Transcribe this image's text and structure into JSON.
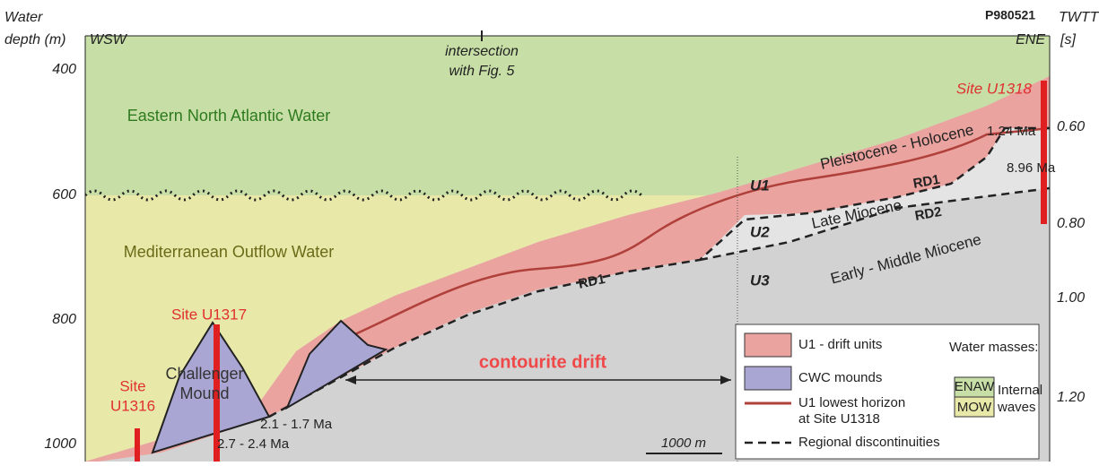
{
  "left_axis": {
    "title": [
      "Water",
      "depth (m)"
    ],
    "ticks": [
      "400",
      "600",
      "800",
      "1000"
    ]
  },
  "right_axis": {
    "title": [
      "TWTT",
      "[s]"
    ],
    "ticks": [
      "0.60",
      "0.80",
      "1.00",
      "1.20"
    ]
  },
  "profile_id": "P980521",
  "directions": [
    "WSW",
    "ENE"
  ],
  "intersection": [
    "intersection",
    "with Fig. 5"
  ],
  "water_masses": [
    "Eastern North Atlantic Water",
    "Mediterranean Outflow Water"
  ],
  "sites": {
    "u1318": "Site U1318",
    "u1317": "Site U1317",
    "u1316": [
      "Site",
      "U1316"
    ]
  },
  "mound": [
    "Challenger",
    "Mound"
  ],
  "ages": {
    "top_u1318": "1.24 Ma",
    "base_u1318": "8.96 Ma",
    "mound_top": "2.1 - 1.7 Ma",
    "mound_base": "2.7 - 2.4 Ma"
  },
  "units": [
    "U1",
    "U2",
    "U3"
  ],
  "stratigraphy": [
    "Pleistocene - Holocene",
    "Late Miocene",
    "Early - Middle Miocene"
  ],
  "discontinuities": [
    "RD1",
    "RD2",
    "RD1"
  ],
  "drift_label": "contourite drift",
  "scale_bar": "1000 m",
  "legend": {
    "items": [
      "U1 - drift units",
      "CWC mounds",
      "U1 lowest horizon",
      "at Site U1318",
      "Regional discontinuities"
    ],
    "water_title": "Water masses:",
    "water_items": [
      "ENAW",
      "MOW"
    ],
    "waves": [
      "Internal",
      "waves"
    ]
  }
}
